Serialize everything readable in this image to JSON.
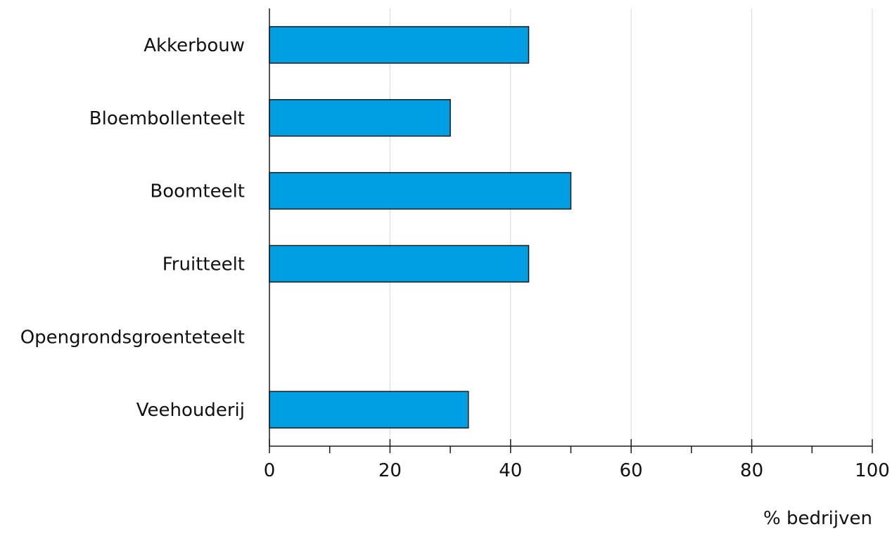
{
  "chart_data": {
    "type": "bar",
    "orientation": "horizontal",
    "categories": [
      "Akkerbouw",
      "Bloembollenteelt",
      "Boomteelt",
      "Fruitteelt",
      "Opengrondsgroenteteelt",
      "Veehouderij"
    ],
    "values": [
      43,
      30,
      50,
      43,
      0,
      33
    ],
    "xlabel": "% bedrijven",
    "xlim": [
      0,
      100
    ],
    "xticks": [
      0,
      20,
      40,
      60,
      80,
      100
    ],
    "xtick_labels": [
      "0",
      "20",
      "40",
      "60",
      "80",
      "100"
    ],
    "grid": "vertical",
    "legend": "none",
    "bar_color": "#009fe3"
  }
}
